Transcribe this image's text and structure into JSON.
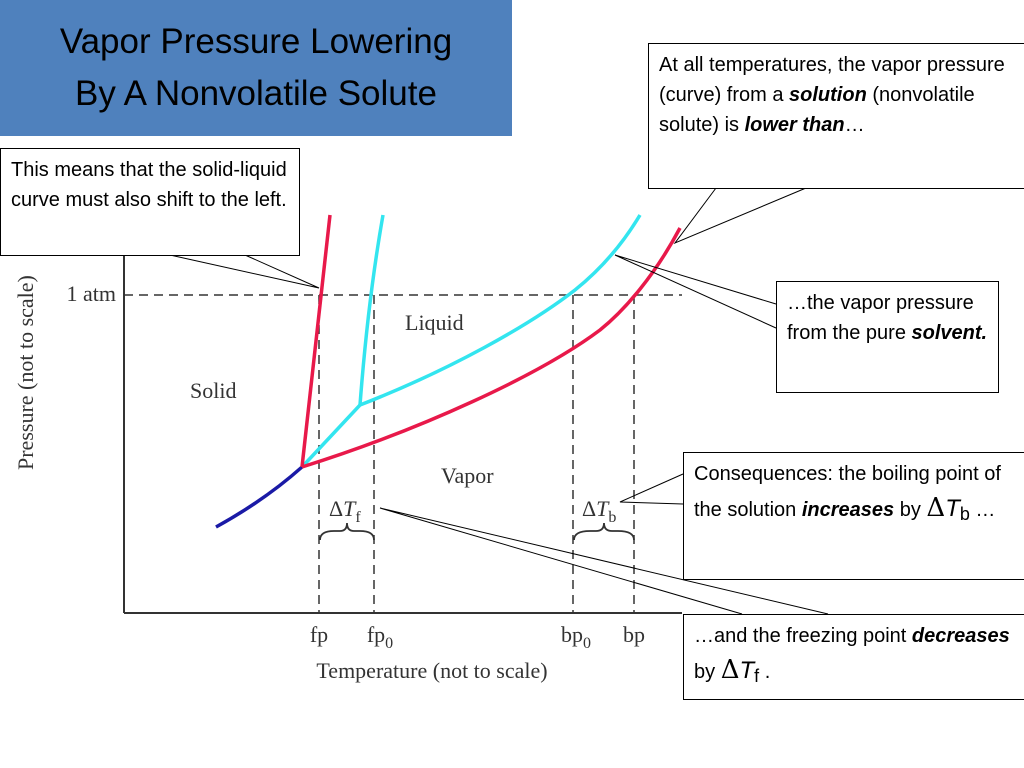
{
  "title": {
    "line1": "Vapor Pressure Lowering",
    "line2": "By A Nonvolatile Solute"
  },
  "diagram": {
    "ylabel": "Pressure (not to scale)",
    "xlabel": "Temperature (not to scale)",
    "one_atm_label": "1 atm",
    "regions": {
      "liquid": "Liquid",
      "solid": "Solid",
      "vapor": "Vapor"
    },
    "delta_tf": {
      "delta": "Δ",
      "t": "T",
      "sub": "f"
    },
    "delta_tb": {
      "delta": "Δ",
      "t": "T",
      "sub": "b"
    },
    "x_ticks": {
      "fp": {
        "main": "fp",
        "sub": ""
      },
      "fp0": {
        "main": "fp",
        "sub": "0"
      },
      "bp0": {
        "main": "bp",
        "sub": "0"
      },
      "bp": {
        "main": "bp",
        "sub": ""
      }
    },
    "colors": {
      "solution_curve": "#e8194a",
      "solvent_curve": "#33e5ef",
      "sublimation_curve": "#1a1aa6",
      "axes": "#333333"
    }
  },
  "callouts": {
    "solid_liquid": "This means that the solid-liquid curve must also shift to the left.",
    "top_right": {
      "part1": "At all temperatures, the vapor pressure (curve) from a ",
      "solution": "solution",
      "part2": " (nonvolatile solute) is ",
      "lower_than": "lower than",
      "part3": "…"
    },
    "pure_solvent": {
      "part1": "…the vapor pressure from the pure ",
      "solvent": "solvent."
    },
    "boiling": {
      "part1": "Consequences:  the boiling point of the solution ",
      "increases": "increases",
      "part2": " by ",
      "delta": "Δ",
      "t": "T",
      "sub": "b",
      "part3": " …"
    },
    "freezing": {
      "part1": "…and the freezing point ",
      "decreases": "decreases",
      "part2": " by ",
      "delta": "Δ",
      "t": "T",
      "sub": "f",
      "part3": " ."
    }
  }
}
